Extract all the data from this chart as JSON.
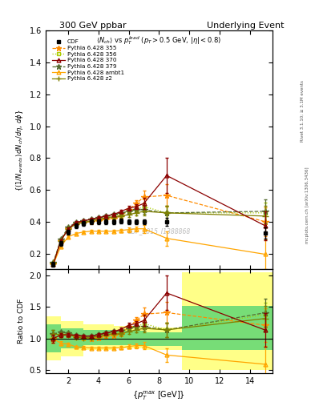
{
  "title_left": "300 GeV ppbar",
  "title_right": "Underlying Event",
  "subtitle": "$\\langle N_{ch}\\rangle$ vs $p_T^{lead}$ ($p_T > 0.5$ GeV, $|\\eta| < 0.8$)",
  "watermark": "CDF_2015_I1388868",
  "xlabel": "$\\{p_T^{max}$ [GeV]$\\}$",
  "ylabel_main": "$\\{(1/N_{events})\\, dN_{ch}/d\\eta,\\, d\\phi\\}$",
  "ylabel_ratio": "Ratio to CDF",
  "xdata": [
    1.0,
    1.5,
    2.0,
    2.5,
    3.0,
    3.5,
    4.0,
    4.5,
    5.0,
    5.5,
    6.0,
    6.5,
    7.0,
    8.5,
    15.0
  ],
  "cdf_y": [
    0.13,
    0.265,
    0.335,
    0.375,
    0.39,
    0.4,
    0.4,
    0.4,
    0.4,
    0.405,
    0.4,
    0.4,
    0.4,
    0.4,
    0.33
  ],
  "cdf_yerr": [
    0.015,
    0.015,
    0.015,
    0.015,
    0.015,
    0.015,
    0.015,
    0.015,
    0.015,
    0.015,
    0.015,
    0.015,
    0.015,
    0.025,
    0.035
  ],
  "p355_y": [
    0.13,
    0.28,
    0.355,
    0.385,
    0.395,
    0.4,
    0.405,
    0.415,
    0.42,
    0.435,
    0.475,
    0.515,
    0.555,
    0.565,
    0.4
  ],
  "p355_yerr": [
    0.008,
    0.008,
    0.008,
    0.008,
    0.008,
    0.008,
    0.008,
    0.008,
    0.008,
    0.01,
    0.015,
    0.02,
    0.04,
    0.07,
    0.09
  ],
  "p356_y": [
    0.13,
    0.28,
    0.355,
    0.385,
    0.395,
    0.405,
    0.415,
    0.425,
    0.435,
    0.445,
    0.465,
    0.475,
    0.495,
    0.455,
    0.455
  ],
  "p356_yerr": [
    0.008,
    0.008,
    0.008,
    0.008,
    0.008,
    0.008,
    0.008,
    0.008,
    0.008,
    0.01,
    0.015,
    0.015,
    0.025,
    0.045,
    0.065
  ],
  "p370_y": [
    0.13,
    0.28,
    0.355,
    0.395,
    0.405,
    0.415,
    0.425,
    0.435,
    0.445,
    0.465,
    0.485,
    0.495,
    0.515,
    0.69,
    0.375
  ],
  "p370_yerr": [
    0.008,
    0.008,
    0.008,
    0.008,
    0.008,
    0.008,
    0.008,
    0.008,
    0.008,
    0.01,
    0.015,
    0.015,
    0.035,
    0.11,
    0.09
  ],
  "p379_y": [
    0.14,
    0.29,
    0.365,
    0.395,
    0.405,
    0.415,
    0.425,
    0.435,
    0.445,
    0.455,
    0.465,
    0.475,
    0.475,
    0.455,
    0.465
  ],
  "p379_yerr": [
    0.008,
    0.008,
    0.008,
    0.008,
    0.008,
    0.008,
    0.008,
    0.008,
    0.008,
    0.01,
    0.015,
    0.015,
    0.025,
    0.045,
    0.075
  ],
  "ambt1_y": [
    0.13,
    0.245,
    0.305,
    0.325,
    0.335,
    0.34,
    0.34,
    0.34,
    0.34,
    0.345,
    0.35,
    0.355,
    0.355,
    0.295,
    0.195
  ],
  "ambt1_yerr": [
    0.008,
    0.008,
    0.008,
    0.008,
    0.008,
    0.008,
    0.008,
    0.008,
    0.008,
    0.01,
    0.015,
    0.015,
    0.025,
    0.045,
    0.095
  ],
  "z2_y": [
    0.14,
    0.28,
    0.355,
    0.385,
    0.395,
    0.405,
    0.415,
    0.425,
    0.43,
    0.435,
    0.445,
    0.455,
    0.465,
    0.455,
    0.435
  ],
  "z2_yerr": [
    0.008,
    0.008,
    0.008,
    0.008,
    0.008,
    0.008,
    0.008,
    0.008,
    0.008,
    0.01,
    0.015,
    0.015,
    0.025,
    0.045,
    0.065
  ],
  "band_yellow_xedges": [
    0.5,
    1.5,
    3.0,
    5.0,
    7.0,
    9.5,
    15.5
  ],
  "band_yellow_lo": [
    0.65,
    0.72,
    0.82,
    0.85,
    0.82,
    0.5,
    0.5
  ],
  "band_yellow_hi": [
    1.35,
    1.28,
    1.22,
    1.2,
    1.18,
    2.05,
    2.05
  ],
  "band_green_xedges": [
    0.5,
    1.5,
    3.0,
    5.0,
    7.0,
    9.5,
    15.5
  ],
  "band_green_lo": [
    0.78,
    0.84,
    0.89,
    0.9,
    0.88,
    0.82,
    0.82
  ],
  "band_green_hi": [
    1.22,
    1.16,
    1.14,
    1.12,
    1.1,
    1.52,
    1.52
  ],
  "color_cdf": "#000000",
  "color_355": "#ff8c00",
  "color_356": "#aacc00",
  "color_370": "#8b0000",
  "color_379": "#556b2f",
  "color_ambt1": "#ffa500",
  "color_z2": "#808000",
  "ylim_main": [
    0.1,
    1.6
  ],
  "ylim_ratio": [
    0.45,
    2.1
  ],
  "xlim": [
    0.5,
    15.5
  ],
  "yticks_main": [
    0.2,
    0.4,
    0.6,
    0.8,
    1.0,
    1.2,
    1.4,
    1.6
  ],
  "yticks_ratio": [
    0.5,
    1.0,
    1.5,
    2.0
  ]
}
